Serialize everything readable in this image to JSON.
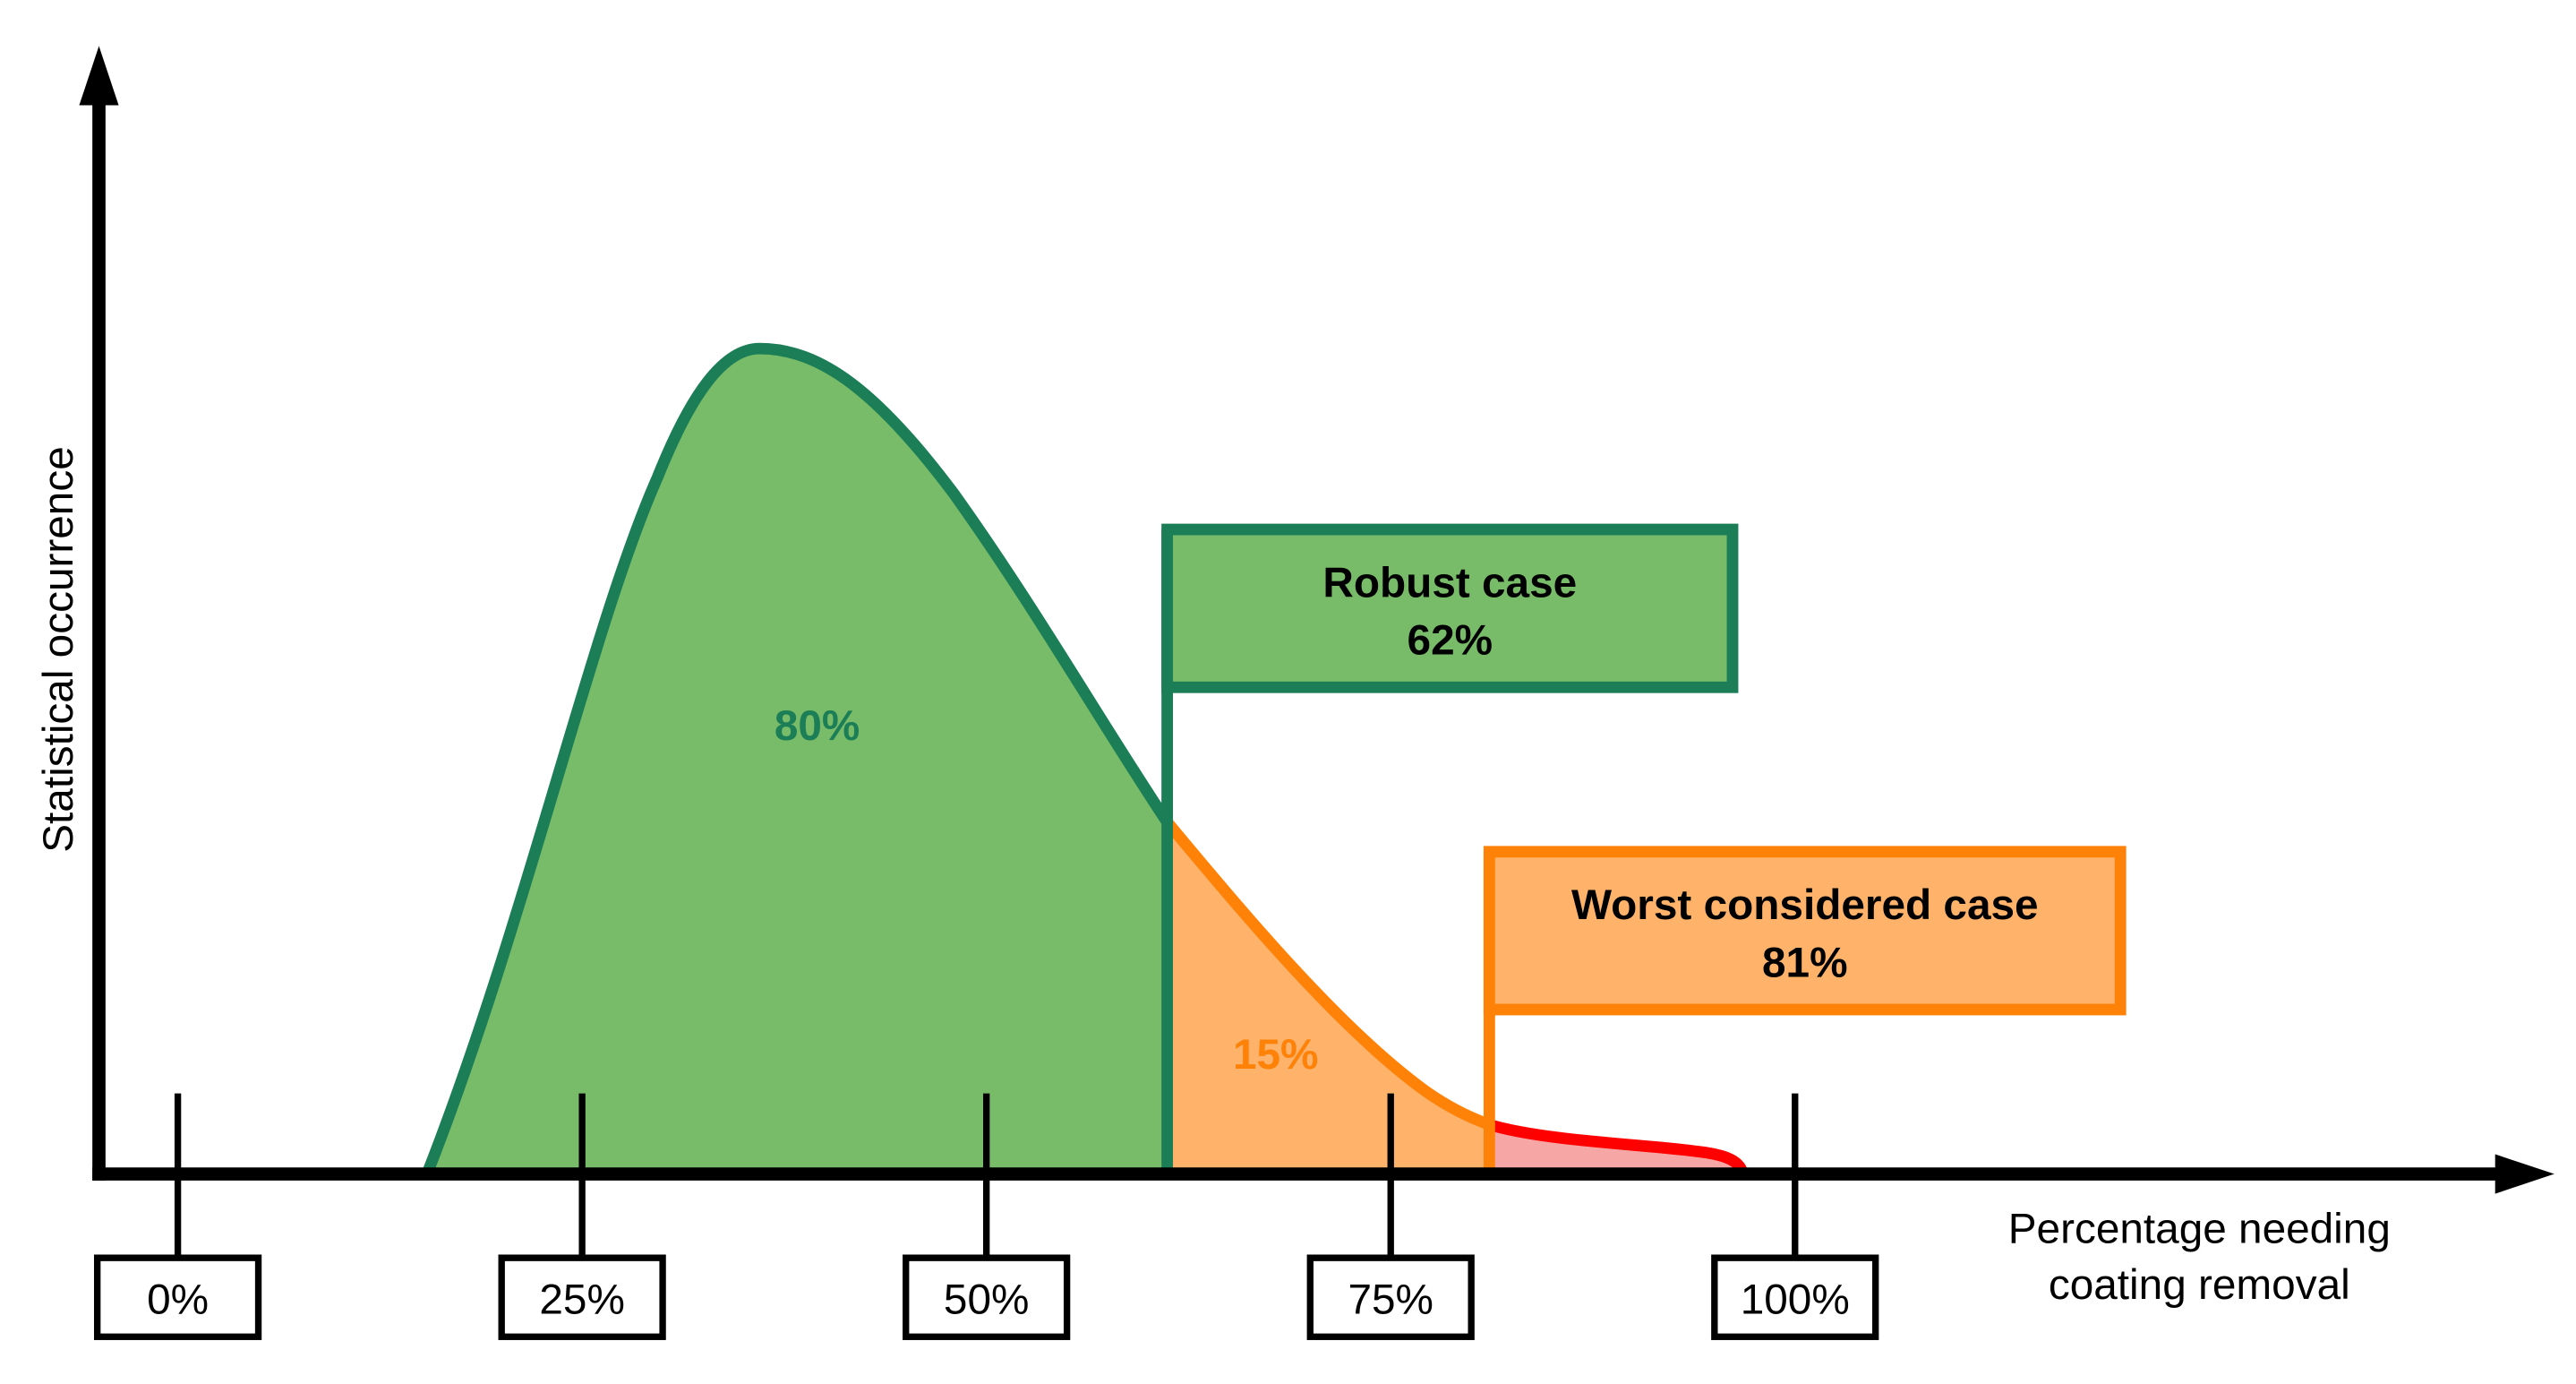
{
  "axes": {
    "y_label": "Statistical occurrence",
    "x_label_line1": "Percentage needing",
    "x_label_line2": "coating removal"
  },
  "ticks": [
    "0%",
    "25%",
    "50%",
    "75%",
    "100%"
  ],
  "regions": {
    "green_label": "80%",
    "orange_label": "15%"
  },
  "robust_flag": {
    "title": "Robust case",
    "value": "62%"
  },
  "worst_flag": {
    "title": "Worst considered case",
    "value": "81%"
  },
  "colors": {
    "green_fill": "#78bb68",
    "green_stroke": "#1b7e57",
    "orange_fill": "#ffb26a",
    "orange_stroke": "#ff8208",
    "red_fill": "#f7a6a6",
    "red_stroke": "#ff0000",
    "axis": "#000000"
  }
}
